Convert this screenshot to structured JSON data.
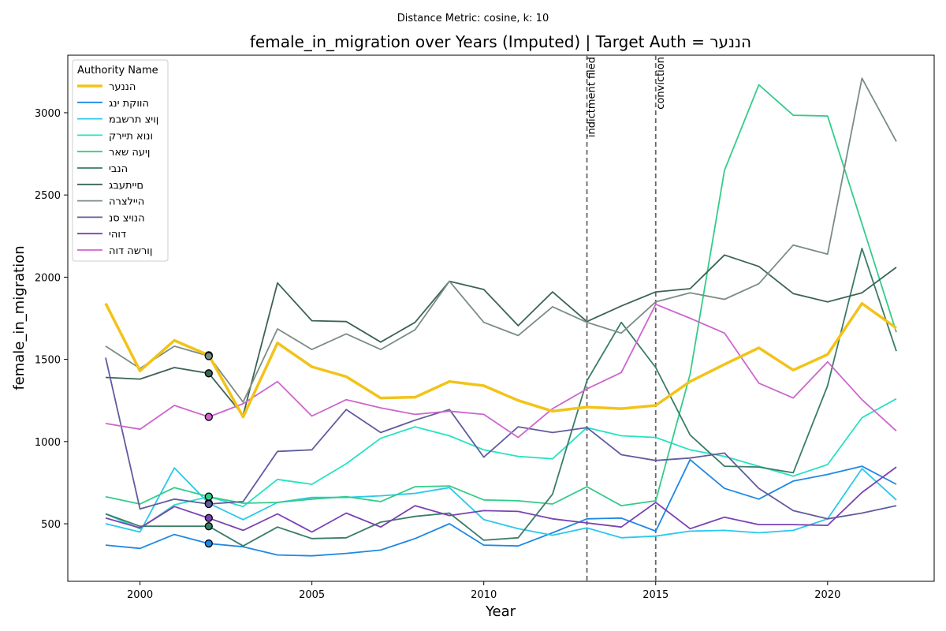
{
  "chart_data": {
    "type": "line",
    "suptitle": "Distance Metric: cosine, k: 10",
    "title": "female_in_migration over Years (Imputed) | Target Auth = הננער",
    "xlabel": "Year",
    "ylabel": "female_in_migration",
    "xlim": [
      1997.9,
      2023.1
    ],
    "ylim": [
      150,
      3350
    ],
    "xticks": [
      2000,
      2005,
      2010,
      2015,
      2020
    ],
    "yticks": [
      500,
      1000,
      1500,
      2000,
      2500,
      3000
    ],
    "grid": false,
    "legend": {
      "title": "Authority Name",
      "placement": "top-left"
    },
    "x": [
      1999,
      2000,
      2001,
      2002,
      2003,
      2004,
      2005,
      2006,
      2007,
      2008,
      2009,
      2010,
      2011,
      2012,
      2013,
      2014,
      2015,
      2016,
      2017,
      2018,
      2019,
      2020,
      2021,
      2022
    ],
    "events": [
      {
        "x": 2013,
        "label": "indictment filed"
      },
      {
        "x": 2015,
        "label": "conviction"
      }
    ],
    "series": [
      {
        "name": "הננער",
        "color": "#f2c318",
        "width": 3.5,
        "target": true,
        "values": [
          1840,
          1430,
          1615,
          1525,
          1150,
          1600,
          1455,
          1395,
          1265,
          1270,
          1365,
          1340,
          1250,
          1185,
          1210,
          1200,
          1220,
          1365,
          1470,
          1570,
          1435,
          1530,
          1840,
          1690
        ]
      },
      {
        "name": "הווקת ינג",
        "color": "#1e88e5",
        "width": 1.8,
        "values": [
          370,
          350,
          435,
          380,
          360,
          310,
          305,
          320,
          340,
          410,
          500,
          370,
          365,
          445,
          530,
          535,
          455,
          890,
          715,
          650,
          760,
          800,
          850,
          740
        ]
      },
      {
        "name": "ןויצ תרשבמ",
        "color": "#29c8ec",
        "width": 1.8,
        "values": [
          500,
          450,
          840,
          625,
          525,
          630,
          660,
          660,
          670,
          685,
          720,
          525,
          470,
          430,
          475,
          415,
          425,
          455,
          460,
          445,
          460,
          530,
          835,
          645
        ]
      },
      {
        "name": "ונוא תיירק",
        "color": "#26e2c3",
        "width": 1.8,
        "values": [
          560,
          470,
          615,
          665,
          605,
          770,
          740,
          865,
          1020,
          1090,
          1035,
          950,
          910,
          895,
          1085,
          1035,
          1025,
          950,
          910,
          850,
          790,
          860,
          1145,
          1260
        ]
      },
      {
        "name": "ןיעה שאר",
        "color": "#33cc88",
        "width": 1.8,
        "values": [
          665,
          620,
          720,
          665,
          625,
          630,
          650,
          665,
          635,
          725,
          730,
          645,
          640,
          620,
          725,
          610,
          640,
          1410,
          2650,
          3170,
          2985,
          2980,
          2325,
          1665
        ]
      },
      {
        "name": "הנבי",
        "color": "#3a7d66",
        "width": 1.8,
        "values": [
          560,
          485,
          485,
          485,
          365,
          480,
          410,
          415,
          510,
          545,
          565,
          400,
          415,
          680,
          1370,
          1725,
          1450,
          1040,
          850,
          845,
          810,
          1340,
          2175,
          1550
        ]
      },
      {
        "name": "םייתעבג",
        "color": "#3b6356",
        "width": 1.8,
        "values": [
          1390,
          1380,
          1450,
          1415,
          1160,
          1965,
          1735,
          1730,
          1605,
          1725,
          1975,
          1925,
          1705,
          1910,
          1730,
          1825,
          1910,
          1930,
          2135,
          2065,
          1900,
          1850,
          1905,
          2060
        ]
      },
      {
        "name": "היילצרה",
        "color": "#7a8d85",
        "width": 1.8,
        "values": [
          1580,
          1445,
          1580,
          1520,
          1240,
          1685,
          1560,
          1655,
          1560,
          1680,
          1975,
          1725,
          1645,
          1820,
          1725,
          1660,
          1850,
          1905,
          1865,
          1960,
          2195,
          2140,
          3210,
          2825
        ]
      },
      {
        "name": "הנויצ סנ",
        "color": "#605c9e",
        "width": 1.8,
        "values": [
          1510,
          590,
          650,
          620,
          635,
          940,
          950,
          1195,
          1055,
          1130,
          1195,
          905,
          1090,
          1055,
          1085,
          920,
          885,
          900,
          930,
          715,
          580,
          530,
          565,
          610
        ]
      },
      {
        "name": "דוהי",
        "color": "#7a42b3",
        "width": 1.8,
        "values": [
          535,
          475,
          605,
          535,
          460,
          560,
          450,
          565,
          480,
          610,
          550,
          580,
          575,
          530,
          505,
          480,
          630,
          470,
          540,
          495,
          495,
          490,
          690,
          845
        ]
      },
      {
        "name": "ןורשה דוה",
        "color": "#cc66cc",
        "width": 1.8,
        "values": [
          1110,
          1075,
          1220,
          1150,
          1230,
          1365,
          1155,
          1255,
          1205,
          1165,
          1185,
          1165,
          1025,
          1200,
          1320,
          1420,
          1835,
          1750,
          1660,
          1355,
          1265,
          1485,
          1255,
          1065
        ]
      }
    ]
  }
}
